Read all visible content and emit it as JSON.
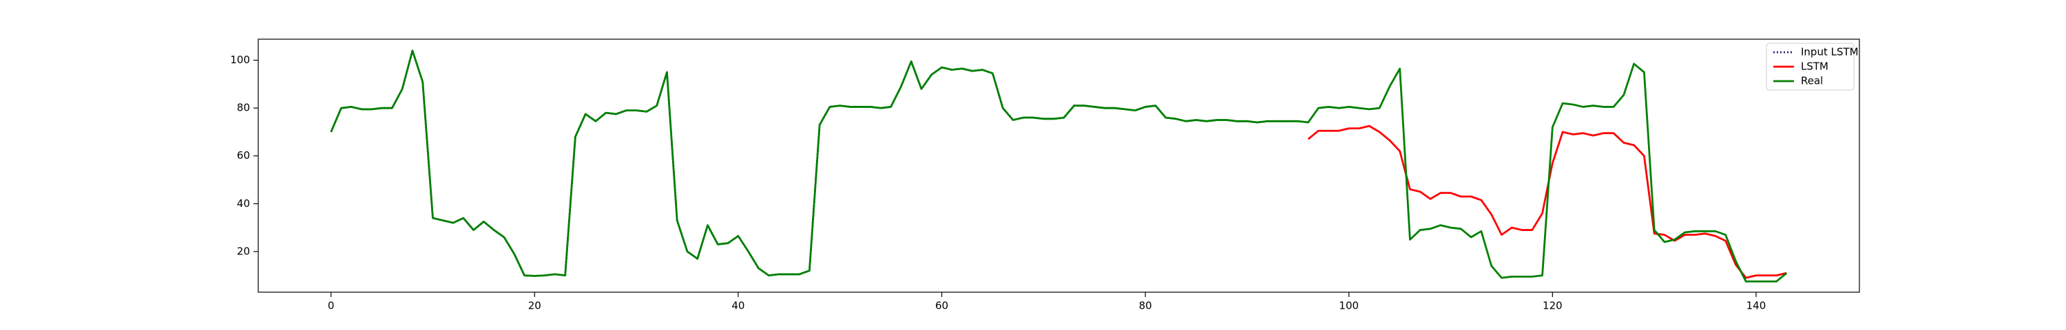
{
  "chart_data": {
    "type": "line",
    "x": [
      0,
      1,
      2,
      3,
      4,
      5,
      6,
      7,
      8,
      9,
      10,
      11,
      12,
      13,
      14,
      15,
      16,
      17,
      18,
      19,
      20,
      21,
      22,
      23,
      24,
      25,
      26,
      27,
      28,
      29,
      30,
      31,
      32,
      33,
      34,
      35,
      36,
      37,
      38,
      39,
      40,
      41,
      42,
      43,
      44,
      45,
      46,
      47,
      48,
      49,
      50,
      51,
      52,
      53,
      54,
      55,
      56,
      57,
      58,
      59,
      60,
      61,
      62,
      63,
      64,
      65,
      66,
      67,
      68,
      69,
      70,
      71,
      72,
      73,
      74,
      75,
      76,
      77,
      78,
      79,
      80,
      81,
      82,
      83,
      84,
      85,
      86,
      87,
      88,
      89,
      90,
      91,
      92,
      93,
      94,
      95,
      96,
      97,
      98,
      99,
      100,
      101,
      102,
      103,
      104,
      105,
      106,
      107,
      108,
      109,
      110,
      111,
      112,
      113,
      114,
      115,
      116,
      117,
      118,
      119,
      120,
      121,
      122,
      123,
      124,
      125,
      126,
      127,
      128,
      129,
      130,
      131,
      132,
      133,
      134,
      135,
      136,
      137,
      138,
      139,
      140,
      141,
      142,
      143
    ],
    "series": [
      {
        "name": "Input LSTM",
        "color": "#1f1f7a",
        "dash": true,
        "values": [
          70,
          80,
          80.5,
          79.5,
          79.5,
          80,
          80,
          88,
          104,
          91,
          34,
          33,
          32,
          34,
          29,
          32.5,
          29,
          26,
          19,
          10,
          9.8,
          10,
          10.5,
          10,
          68,
          77.5,
          74.5,
          78,
          77.5,
          79,
          79,
          78.5,
          81,
          95,
          33,
          20,
          17,
          31,
          23,
          23.5,
          26.5,
          20,
          13,
          10,
          10.5,
          10.5,
          10.5,
          12,
          73,
          80.5,
          81,
          80.5,
          80.5,
          80.5,
          80,
          80.5,
          89,
          99.5,
          88,
          94,
          97,
          96,
          96.5,
          95.5,
          96,
          94.5,
          80,
          75,
          76,
          76,
          75.5,
          75.5,
          76,
          81,
          81,
          80.5,
          80,
          80,
          79.5,
          79,
          80.5,
          81,
          76,
          75.5,
          74.5,
          75,
          74.5,
          75,
          75,
          74.5,
          74.5,
          74,
          74.5,
          74.5,
          74.5,
          74.5,
          null,
          null,
          null,
          null,
          null,
          null,
          null,
          null,
          null,
          null,
          null,
          null,
          null,
          null,
          null,
          null,
          null,
          null,
          null,
          null,
          null,
          null,
          null,
          null,
          null,
          null,
          null,
          null,
          null,
          null,
          null,
          null,
          null,
          null,
          null,
          null,
          null,
          null,
          null,
          null,
          null,
          null,
          null,
          null,
          null,
          null,
          null,
          null
        ]
      },
      {
        "name": "LSTM",
        "color": "#ff0000",
        "values": [
          null,
          null,
          null,
          null,
          null,
          null,
          null,
          null,
          null,
          null,
          null,
          null,
          null,
          null,
          null,
          null,
          null,
          null,
          null,
          null,
          null,
          null,
          null,
          null,
          null,
          null,
          null,
          null,
          null,
          null,
          null,
          null,
          null,
          null,
          null,
          null,
          null,
          null,
          null,
          null,
          null,
          null,
          null,
          null,
          null,
          null,
          null,
          null,
          null,
          null,
          null,
          null,
          null,
          null,
          null,
          null,
          null,
          null,
          null,
          null,
          null,
          null,
          null,
          null,
          null,
          null,
          null,
          null,
          null,
          null,
          null,
          null,
          null,
          null,
          null,
          null,
          null,
          null,
          null,
          null,
          null,
          null,
          null,
          null,
          null,
          null,
          null,
          null,
          null,
          null,
          null,
          null,
          null,
          null,
          null,
          null,
          67,
          70.5,
          70.5,
          70.5,
          71.5,
          71.5,
          72.5,
          70,
          66.5,
          62,
          46,
          45,
          42,
          44.5,
          44.5,
          43,
          43,
          41.5,
          35.5,
          27,
          30,
          29,
          29,
          36,
          57,
          70,
          69,
          69.5,
          68.5,
          69.5,
          69.5,
          65.5,
          64.5,
          60,
          27.5,
          27,
          24.5,
          27,
          27,
          27.5,
          26.5,
          24.5,
          14.5,
          9,
          10,
          10,
          10,
          11
        ]
      },
      {
        "name": "Real",
        "color": "#008000",
        "values": [
          70,
          80,
          80.5,
          79.5,
          79.5,
          80,
          80,
          88,
          104,
          91,
          34,
          33,
          32,
          34,
          29,
          32.5,
          29,
          26,
          19,
          10,
          9.8,
          10,
          10.5,
          10,
          68,
          77.5,
          74.5,
          78,
          77.5,
          79,
          79,
          78.5,
          81,
          95,
          33,
          20,
          17,
          31,
          23,
          23.5,
          26.5,
          20,
          13,
          10,
          10.5,
          10.5,
          10.5,
          12,
          73,
          80.5,
          81,
          80.5,
          80.5,
          80.5,
          80,
          80.5,
          89,
          99.5,
          88,
          94,
          97,
          96,
          96.5,
          95.5,
          96,
          94.5,
          80,
          75,
          76,
          76,
          75.5,
          75.5,
          76,
          81,
          81,
          80.5,
          80,
          80,
          79.5,
          79,
          80.5,
          81,
          76,
          75.5,
          74.5,
          75,
          74.5,
          75,
          75,
          74.5,
          74.5,
          74,
          74.5,
          74.5,
          74.5,
          74.5,
          74,
          80,
          80.5,
          80,
          80.5,
          80,
          79.5,
          80,
          89,
          96.5,
          25,
          29,
          29.5,
          31,
          30,
          29.5,
          26,
          28.5,
          14,
          9,
          9.5,
          9.5,
          9.5,
          10,
          72,
          82,
          81.5,
          80.5,
          81,
          80.5,
          80.5,
          85.5,
          98.5,
          95,
          29,
          24,
          25,
          28,
          28.5,
          28.5,
          28.5,
          27,
          16,
          7.5,
          7.5,
          7.5,
          7.5,
          11
        ]
      }
    ],
    "xlim": [
      -7.15,
      150.15
    ],
    "xticks": [
      0,
      20,
      40,
      60,
      80,
      100,
      120,
      140
    ],
    "ylim": [
      3,
      108.8
    ],
    "yticks": [
      20,
      40,
      60,
      80,
      100
    ],
    "legend": "upper right"
  }
}
